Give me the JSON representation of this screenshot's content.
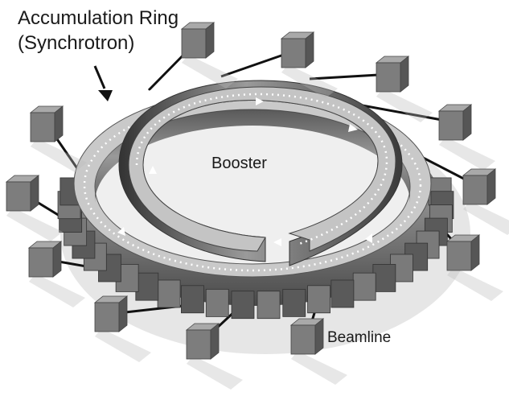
{
  "labels": {
    "ring_line1": "Accumulation Ring",
    "ring_line2": "(Synchrotron)",
    "booster": "Booster",
    "beamline": "Beamline"
  },
  "icons": [
    "callout-arrow-icon",
    "beam-direction-arrow-icon",
    "beamline-station-block-icon"
  ],
  "colors": {
    "ring_top": "#c9c9c9",
    "ring_wall": "#6a6a6a",
    "station_front": "#7d7d7d",
    "beam_dots": "#ffffff",
    "text": "#1a1a1a"
  }
}
